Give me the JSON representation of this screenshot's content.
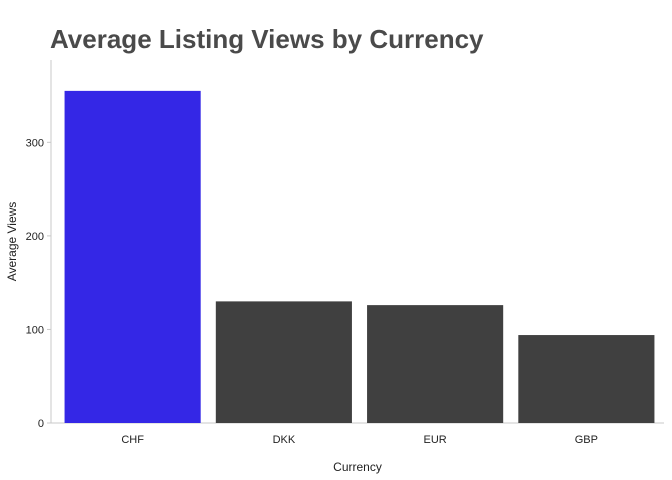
{
  "chart_data": {
    "type": "bar",
    "title": "Average Listing Views by Currency",
    "xlabel": "Currency",
    "ylabel": "Average Views",
    "categories": [
      "CHF",
      "DKK",
      "EUR",
      "GBP"
    ],
    "values": [
      355,
      130,
      126,
      94
    ],
    "ylim": [
      0,
      388
    ],
    "yticks": [
      0,
      100,
      200,
      300
    ],
    "grid": false,
    "colors": {
      "highlight": "#3427e6",
      "default": "#404040",
      "axis": "#c8c8c8"
    },
    "highlight_index": 0
  }
}
